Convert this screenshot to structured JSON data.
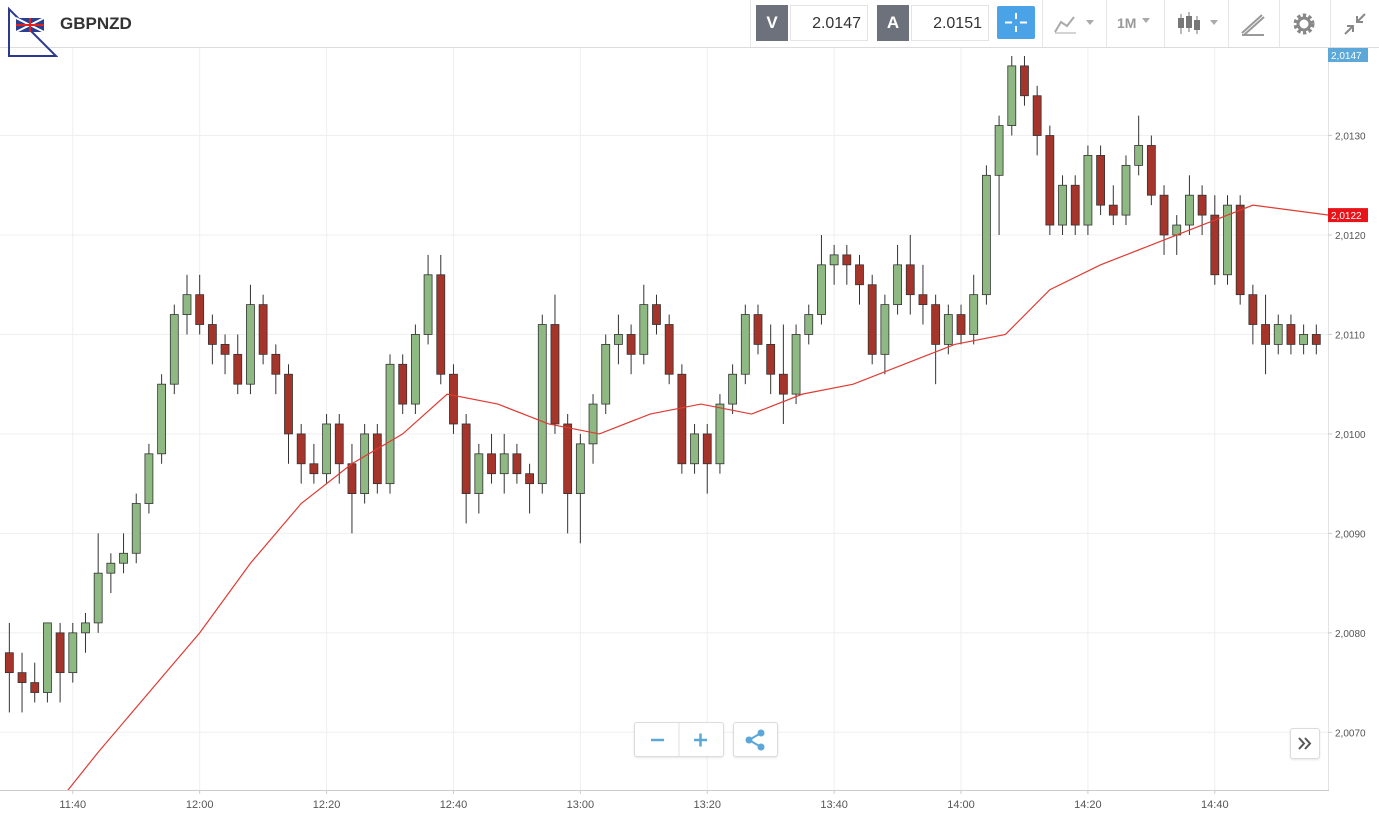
{
  "header": {
    "symbol": "GBPNZD",
    "bid_label": "V",
    "bid": "2.0147",
    "ask_label": "A",
    "ask": "2.0151",
    "timeframe": "1M"
  },
  "chart_data": {
    "type": "candlestick",
    "x": [
      "11:30",
      "11:32",
      "11:34",
      "11:36",
      "11:38",
      "11:40",
      "11:42",
      "11:44",
      "11:46",
      "11:48",
      "11:50",
      "11:52",
      "11:54",
      "11:56",
      "11:58",
      "12:00",
      "12:02",
      "12:04",
      "12:06",
      "12:08",
      "12:10",
      "12:12",
      "12:14",
      "12:16",
      "12:18",
      "12:20",
      "12:22",
      "12:24",
      "12:26",
      "12:28",
      "12:30",
      "12:32",
      "12:34",
      "12:36",
      "12:38",
      "12:40",
      "12:42",
      "12:44",
      "12:46",
      "12:48",
      "12:50",
      "12:52",
      "12:54",
      "12:56",
      "12:58",
      "13:00",
      "13:02",
      "13:04",
      "13:06",
      "13:08",
      "13:10",
      "13:12",
      "13:14",
      "13:16",
      "13:18",
      "13:20",
      "13:22",
      "13:24",
      "13:26",
      "13:28",
      "13:30",
      "13:32",
      "13:34",
      "13:36",
      "13:38",
      "13:40",
      "13:42",
      "13:44",
      "13:46",
      "13:48",
      "13:50",
      "13:52",
      "13:54",
      "13:56",
      "13:58",
      "14:00",
      "14:02",
      "14:04",
      "14:06",
      "14:08",
      "14:10",
      "14:12",
      "14:14",
      "14:16",
      "14:18",
      "14:20",
      "14:22",
      "14:24",
      "14:26",
      "14:28",
      "14:30",
      "14:32",
      "14:34",
      "14:36",
      "14:38",
      "14:40",
      "14:42",
      "14:44",
      "14:46",
      "14:48",
      "14:50",
      "14:52",
      "14:54",
      "14:56"
    ],
    "ohlc": [
      [
        2.0078,
        2.0081,
        2.0072,
        2.0076
      ],
      [
        2.0076,
        2.0078,
        2.0072,
        2.0075
      ],
      [
        2.0075,
        2.0077,
        2.0073,
        2.0074
      ],
      [
        2.0074,
        2.0081,
        2.0073,
        2.0081
      ],
      [
        2.008,
        2.0081,
        2.0073,
        2.0076
      ],
      [
        2.0076,
        2.0081,
        2.0075,
        2.008
      ],
      [
        2.008,
        2.0082,
        2.0078,
        2.0081
      ],
      [
        2.0081,
        2.009,
        2.008,
        2.0086
      ],
      [
        2.0086,
        2.0088,
        2.0084,
        2.0087
      ],
      [
        2.0087,
        2.009,
        2.0086,
        2.0088
      ],
      [
        2.0088,
        2.0094,
        2.0087,
        2.0093
      ],
      [
        2.0093,
        2.0099,
        2.0092,
        2.0098
      ],
      [
        2.0098,
        2.0106,
        2.0097,
        2.0105
      ],
      [
        2.0105,
        2.0113,
        2.0104,
        2.0112
      ],
      [
        2.0112,
        2.0116,
        2.011,
        2.0114
      ],
      [
        2.0114,
        2.0116,
        2.011,
        2.0111
      ],
      [
        2.0111,
        2.0112,
        2.0107,
        2.0109
      ],
      [
        2.0109,
        2.011,
        2.0106,
        2.0108
      ],
      [
        2.0108,
        2.011,
        2.0104,
        2.0105
      ],
      [
        2.0105,
        2.0115,
        2.0104,
        2.0113
      ],
      [
        2.0113,
        2.0114,
        2.0107,
        2.0108
      ],
      [
        2.0108,
        2.0109,
        2.0104,
        2.0106
      ],
      [
        2.0106,
        2.0107,
        2.0097,
        2.01
      ],
      [
        2.01,
        2.0101,
        2.0095,
        2.0097
      ],
      [
        2.0097,
        2.0099,
        2.0095,
        2.0096
      ],
      [
        2.0096,
        2.0102,
        2.0095,
        2.0101
      ],
      [
        2.0101,
        2.0102,
        2.0095,
        2.0097
      ],
      [
        2.0097,
        2.0099,
        2.009,
        2.0094
      ],
      [
        2.0094,
        2.0101,
        2.0093,
        2.01
      ],
      [
        2.01,
        2.0101,
        2.0094,
        2.0095
      ],
      [
        2.0095,
        2.0108,
        2.0094,
        2.0107
      ],
      [
        2.0107,
        2.0108,
        2.0102,
        2.0103
      ],
      [
        2.0103,
        2.0111,
        2.0102,
        2.011
      ],
      [
        2.011,
        2.0118,
        2.0109,
        2.0116
      ],
      [
        2.0116,
        2.0118,
        2.0105,
        2.0106
      ],
      [
        2.0106,
        2.0107,
        2.01,
        2.0101
      ],
      [
        2.0101,
        2.0102,
        2.0091,
        2.0094
      ],
      [
        2.0094,
        2.0099,
        2.0092,
        2.0098
      ],
      [
        2.0098,
        2.01,
        2.0095,
        2.0096
      ],
      [
        2.0096,
        2.01,
        2.0094,
        2.0098
      ],
      [
        2.0098,
        2.0099,
        2.0095,
        2.0096
      ],
      [
        2.0096,
        2.0097,
        2.0092,
        2.0095
      ],
      [
        2.0095,
        2.0112,
        2.0094,
        2.0111
      ],
      [
        2.0111,
        2.0114,
        2.01,
        2.0101
      ],
      [
        2.0101,
        2.0102,
        2.009,
        2.0094
      ],
      [
        2.0094,
        2.01,
        2.0089,
        2.0099
      ],
      [
        2.0099,
        2.0104,
        2.0097,
        2.0103
      ],
      [
        2.0103,
        2.011,
        2.0102,
        2.0109
      ],
      [
        2.0109,
        2.0112,
        2.0107,
        2.011
      ],
      [
        2.011,
        2.0111,
        2.0106,
        2.0108
      ],
      [
        2.0108,
        2.0115,
        2.0107,
        2.0113
      ],
      [
        2.0113,
        2.0114,
        2.011,
        2.0111
      ],
      [
        2.0111,
        2.0112,
        2.0105,
        2.0106
      ],
      [
        2.0106,
        2.0107,
        2.0096,
        2.0097
      ],
      [
        2.0097,
        2.0101,
        2.0096,
        2.01
      ],
      [
        2.01,
        2.0101,
        2.0094,
        2.0097
      ],
      [
        2.0097,
        2.0104,
        2.0096,
        2.0103
      ],
      [
        2.0103,
        2.0107,
        2.0102,
        2.0106
      ],
      [
        2.0106,
        2.0113,
        2.0105,
        2.0112
      ],
      [
        2.0112,
        2.0113,
        2.0108,
        2.0109
      ],
      [
        2.0109,
        2.0111,
        2.0104,
        2.0106
      ],
      [
        2.0106,
        2.0111,
        2.0101,
        2.0104
      ],
      [
        2.0104,
        2.0111,
        2.0103,
        2.011
      ],
      [
        2.011,
        2.0113,
        2.0109,
        2.0112
      ],
      [
        2.0112,
        2.012,
        2.0111,
        2.0117
      ],
      [
        2.0117,
        2.0119,
        2.0115,
        2.0118
      ],
      [
        2.0118,
        2.0119,
        2.0115,
        2.0117
      ],
      [
        2.0117,
        2.0118,
        2.0113,
        2.0115
      ],
      [
        2.0115,
        2.0116,
        2.0107,
        2.0108
      ],
      [
        2.0108,
        2.0114,
        2.0106,
        2.0113
      ],
      [
        2.0113,
        2.0119,
        2.0112,
        2.0117
      ],
      [
        2.0117,
        2.012,
        2.0112,
        2.0114
      ],
      [
        2.0114,
        2.0117,
        2.0111,
        2.0113
      ],
      [
        2.0113,
        2.0114,
        2.0105,
        2.0109
      ],
      [
        2.0109,
        2.0113,
        2.0108,
        2.0112
      ],
      [
        2.0112,
        2.0113,
        2.0109,
        2.011
      ],
      [
        2.011,
        2.0116,
        2.0109,
        2.0114
      ],
      [
        2.0114,
        2.0127,
        2.0113,
        2.0126
      ],
      [
        2.0126,
        2.0132,
        2.012,
        2.0131
      ],
      [
        2.0131,
        2.0138,
        2.013,
        2.0137
      ],
      [
        2.0137,
        2.0138,
        2.0133,
        2.0134
      ],
      [
        2.0134,
        2.0135,
        2.0128,
        2.013
      ],
      [
        2.013,
        2.0131,
        2.012,
        2.0121
      ],
      [
        2.0121,
        2.0126,
        2.012,
        2.0125
      ],
      [
        2.0125,
        2.0126,
        2.012,
        2.0121
      ],
      [
        2.0121,
        2.0129,
        2.012,
        2.0128
      ],
      [
        2.0128,
        2.0129,
        2.0122,
        2.0123
      ],
      [
        2.0123,
        2.0125,
        2.0121,
        2.0122
      ],
      [
        2.0122,
        2.0128,
        2.0121,
        2.0127
      ],
      [
        2.0127,
        2.0132,
        2.0126,
        2.0129
      ],
      [
        2.0129,
        2.013,
        2.0123,
        2.0124
      ],
      [
        2.0124,
        2.0125,
        2.0118,
        2.012
      ],
      [
        2.012,
        2.0122,
        2.0118,
        2.0121
      ],
      [
        2.0121,
        2.0126,
        2.012,
        2.0124
      ],
      [
        2.0124,
        2.0125,
        2.012,
        2.0122
      ],
      [
        2.0122,
        2.0124,
        2.0115,
        2.0116
      ],
      [
        2.0116,
        2.0124,
        2.0115,
        2.0123
      ],
      [
        2.0123,
        2.0124,
        2.0113,
        2.0114
      ],
      [
        2.0114,
        2.0115,
        2.0109,
        2.0111
      ],
      [
        2.0111,
        2.0114,
        2.0106,
        2.0109
      ],
      [
        2.0109,
        2.0112,
        2.0108,
        2.0111
      ],
      [
        2.0111,
        2.0112,
        2.0108,
        2.0109
      ],
      [
        2.0109,
        2.0111,
        2.0108,
        2.011
      ],
      [
        2.011,
        2.0111,
        2.0108,
        2.0109
      ]
    ],
    "up_color": "#8fb982",
    "down_color": "#a5352b",
    "overlay": {
      "color": "#e03a32",
      "x": [
        "11:39",
        "11:44",
        "11:52",
        "12:00",
        "12:08",
        "12:16",
        "12:24",
        "12:32",
        "12:39",
        "12:47",
        "12:55",
        "13:03",
        "13:11",
        "13:19",
        "13:27",
        "13:35",
        "13:43",
        "13:51",
        "13:59",
        "14:07",
        "14:14",
        "14:22",
        "14:30",
        "14:38",
        "14:46",
        "14:58"
      ],
      "values": [
        2.0064,
        2.0068,
        2.0074,
        2.008,
        2.0087,
        2.0093,
        2.0097,
        2.01,
        2.0104,
        2.0103,
        2.0101,
        2.01,
        2.0102,
        2.0103,
        2.0102,
        2.0104,
        2.0105,
        2.0107,
        2.0109,
        2.011,
        2.01145,
        2.0117,
        2.0119,
        2.0121,
        2.0123,
        2.0122
      ]
    },
    "ylim": [
      2.00642,
      2.01388
    ],
    "yticks": [
      {
        "value": 2.007,
        "label": "2,0070"
      },
      {
        "value": 2.008,
        "label": "2,0080"
      },
      {
        "value": 2.009,
        "label": "2,0090"
      },
      {
        "value": 2.01,
        "label": "2,0100"
      },
      {
        "value": 2.011,
        "label": "2,0110"
      },
      {
        "value": 2.012,
        "label": "2,0120"
      },
      {
        "value": 2.013,
        "label": "2,0130"
      }
    ],
    "xlim": [
      "11:29",
      "14:58"
    ],
    "xticks": [
      "11:40",
      "12:00",
      "12:20",
      "12:40",
      "13:00",
      "13:20",
      "13:40",
      "14:00",
      "14:20",
      "14:40"
    ],
    "grid": true,
    "price_tag": {
      "value": 2.0147,
      "label": "2,0147",
      "color": "#5ba8d9"
    },
    "overlay_tag": {
      "value": 2.0122,
      "label": "2,0122",
      "color": "#e8141a"
    }
  }
}
